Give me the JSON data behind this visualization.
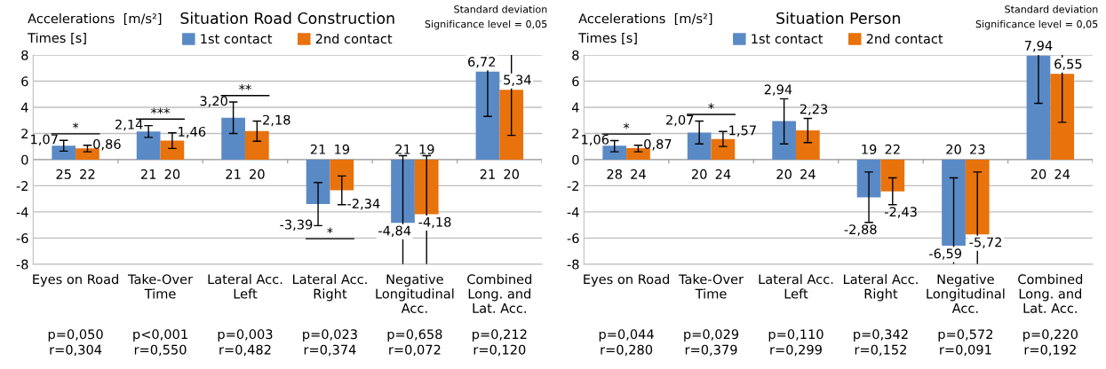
{
  "chart_data": [
    {
      "type": "bar",
      "title": "Situation Road Construction",
      "ylabel": "Accelerations  [m/s²]\nTimes [s]",
      "categories": [
        "Eyes on Road",
        "Take-Over\nTime",
        "Lateral Acc.\nLeft",
        "Lateral Acc.\nRight",
        "Negative\nLongitudinal\nAcc.",
        "Combined\nLong. and\nLat. Acc."
      ],
      "series": [
        {
          "name": "1st contact",
          "color": "#5a8ac6",
          "values": [
            1.07,
            2.14,
            3.2,
            -3.39,
            -4.84,
            6.72
          ],
          "value_labels": [
            "1,07",
            "2,14",
            "3,20",
            "-3,39",
            "-4,84",
            "6,72"
          ],
          "errors": [
            [
              0.65,
              1.47
            ],
            [
              1.7,
              2.6
            ],
            [
              2.0,
              4.4
            ],
            [
              -5.05,
              -1.75
            ],
            [
              -8,
              0.3
            ],
            [
              3.3,
              8
            ]
          ]
        },
        {
          "name": "2nd contact",
          "color": "#e8720c",
          "values": [
            0.86,
            1.46,
            2.18,
            -2.34,
            -4.18,
            5.34
          ],
          "value_labels": [
            "0,86",
            "1,46",
            "2,18",
            "-2,34",
            "-4,18",
            "5,34"
          ],
          "errors": [
            [
              0.6,
              1.1
            ],
            [
              0.85,
              2.05
            ],
            [
              1.4,
              2.95
            ],
            [
              -3.45,
              -1.25
            ],
            [
              -8,
              0.3
            ],
            [
              1.85,
              8
            ]
          ]
        }
      ],
      "ylim": [
        -8,
        8
      ],
      "yticks": [
        -8,
        -6,
        -4,
        -2,
        0,
        2,
        4,
        6,
        8
      ],
      "grid": "y",
      "legend": "top",
      "annotations": [
        "25",
        "22",
        "21",
        "20",
        "21",
        "20",
        "21",
        "19",
        "21",
        "19",
        "21",
        "20",
        "p=0,050\nr=0,304",
        "p<0,001\nr=0,550",
        "p=0,003\nr=0,482",
        "p=0,023\nr=0,374",
        "p=0,658\nr=0,072",
        "p=0,212\nr=0,120",
        "Standard deviation\nSignificance level = 0,05",
        {
          "text": "*",
          "x": "Eyes on Road",
          "y": 1.07
        },
        {
          "text": "***",
          "x": "Take-Over\nTime",
          "y": 2.14
        },
        {
          "text": "**",
          "x": "Lateral Acc.\nLeft",
          "y": 3.2
        },
        {
          "text": "*",
          "x": "Lateral Acc.\nRight",
          "y": -3.39
        }
      ]
    },
    {
      "type": "bar",
      "title": "Situation Person",
      "ylabel": "Accelerations  [m/s²]\nTimes [s]",
      "categories": [
        "Eyes on Road",
        "Take-Over\nTime",
        "Lateral Acc.\nLeft",
        "Lateral Acc.\nRight",
        "Negative\nLongitudinal\nAcc.",
        "Combined\nLong. and\nLat. Acc."
      ],
      "series": [
        {
          "name": "1st contact",
          "color": "#5a8ac6",
          "values": [
            1.06,
            2.07,
            2.94,
            -2.88,
            -6.59,
            7.94
          ],
          "value_labels": [
            "1,06",
            "2,07",
            "2,94",
            "-2,88",
            "-6,59",
            "7,94"
          ],
          "errors": [
            [
              0.6,
              1.45
            ],
            [
              1.2,
              2.95
            ],
            [
              1.2,
              4.65
            ],
            [
              -4.8,
              -0.95
            ],
            [
              -8,
              -1.4
            ],
            [
              4.3,
              8
            ]
          ]
        },
        {
          "name": "2nd contact",
          "color": "#e8720c",
          "values": [
            0.87,
            1.57,
            2.23,
            -2.43,
            -5.72,
            6.55
          ],
          "value_labels": [
            "0,87",
            "1,57",
            "2,23",
            "-2,43",
            "-5,72",
            "6,55"
          ],
          "errors": [
            [
              0.6,
              1.1
            ],
            [
              1.0,
              2.15
            ],
            [
              1.3,
              3.15
            ],
            [
              -3.45,
              -1.4
            ],
            [
              -8,
              -0.95
            ],
            [
              2.85,
              8
            ]
          ]
        }
      ],
      "ylim": [
        -8,
        8
      ],
      "yticks": [
        -8,
        -6,
        -4,
        -2,
        0,
        2,
        4,
        6,
        8
      ],
      "grid": "y",
      "legend": "top",
      "annotations": [
        "28",
        "24",
        "20",
        "24",
        "20",
        "24",
        "19",
        "22",
        "20",
        "23",
        "20",
        "24",
        "p=0,044\nr=0,280",
        "p=0,029\nr=0,379",
        "p=0,110\nr=0,299",
        "p=0,342\nr=0,152",
        "p=0,572\nr=0,091",
        "p=0,220\nr=0,192",
        "Standard deviation\nSignificance level = 0,05",
        {
          "text": "*",
          "x": "Eyes on Road",
          "y": 1.06
        },
        {
          "text": "*",
          "x": "Take-Over\nTime",
          "y": 2.07
        }
      ]
    }
  ]
}
